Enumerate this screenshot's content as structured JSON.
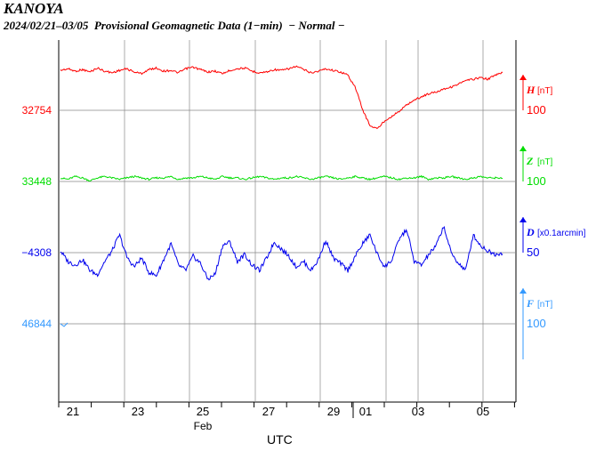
{
  "header": {
    "station": "KANOYA",
    "subtitle": "2024/02/21–03/05  Provisional Geomagnetic Data (1−min)  − Normal −"
  },
  "chart_data": {
    "type": "line",
    "title": "KANOYA",
    "subtitle": "2024/02/21–03/05  Provisional Geomagnetic Data (1−min)  − Normal −",
    "xlabel": "UTC",
    "month_labels": [
      {
        "label": "Feb",
        "at_tick": "25"
      }
    ],
    "x_ticks": [
      "21",
      "23",
      "25",
      "27",
      "29",
      "01",
      "03",
      "05"
    ],
    "x_range_days": [
      "2024-02-21",
      "2024-03-05"
    ],
    "grid": true,
    "series": [
      {
        "name": "H",
        "unit": "[nT]",
        "color": "#ff0000",
        "baseline_label": "32754",
        "scale_label": "100",
        "values": [
          49,
          47,
          50,
          48,
          51,
          46,
          50,
          52,
          49,
          47,
          51,
          53,
          48,
          46,
          50,
          49,
          52,
          47,
          45,
          48,
          51,
          50,
          53,
          49,
          47,
          46,
          50,
          52,
          51,
          48,
          49,
          47,
          44,
          48,
          52,
          50,
          47,
          49,
          51,
          55,
          70,
          98,
          118,
          122,
          112,
          106,
          100,
          92,
          86,
          82,
          78,
          76,
          72,
          70,
          66,
          62,
          60,
          58,
          60,
          55,
          52
        ]
      },
      {
        "name": "Z",
        "unit": "[nT]",
        "color": "#00dd00",
        "baseline_label": "33448",
        "scale_label": "100",
        "values": [
          100,
          99,
          101,
          100,
          98,
          100,
          101,
          100,
          99,
          100,
          101,
          100,
          99,
          100,
          100,
          101,
          99,
          100,
          100,
          101,
          100,
          99,
          101,
          100,
          100,
          99,
          100,
          101,
          100,
          99,
          100,
          100,
          101,
          100,
          99,
          100,
          101,
          100,
          99,
          100,
          101,
          100,
          99,
          100,
          101,
          100,
          99,
          100,
          100,
          101,
          99,
          100,
          100,
          101,
          100,
          99,
          100,
          101,
          100,
          100,
          100
        ]
      },
      {
        "name": "D",
        "unit": "[x0.1arcmin]",
        "color": "#0000ee",
        "baseline_label": "−4308",
        "scale_label": "50",
        "values": [
          52,
          40,
          36,
          42,
          30,
          25,
          40,
          52,
          70,
          45,
          34,
          44,
          28,
          24,
          42,
          60,
          36,
          30,
          46,
          38,
          20,
          26,
          58,
          62,
          40,
          48,
          36,
          30,
          44,
          62,
          54,
          46,
          34,
          40,
          30,
          42,
          64,
          44,
          38,
          30,
          46,
          60,
          70,
          48,
          34,
          42,
          66,
          76,
          40,
          36,
          48,
          58,
          80,
          50,
          38,
          30,
          70,
          58,
          52,
          48,
          50
        ]
      },
      {
        "name": "F",
        "unit": "[nT]",
        "color": "#3399ff",
        "baseline_label": "46844",
        "scale_label": "100",
        "values": [
          100
        ]
      }
    ]
  }
}
